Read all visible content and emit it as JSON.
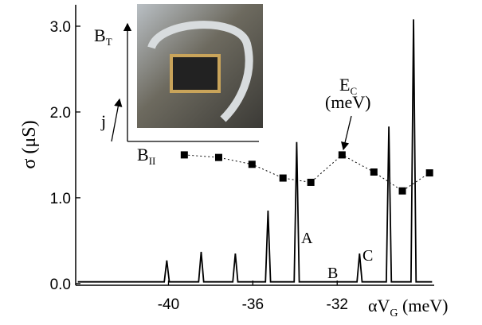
{
  "chart_data": {
    "type": "line",
    "ylabel": "σ (μS)",
    "xlabel": [
      "αV",
      "G",
      " (meV)"
    ],
    "xlim": [
      -44.4,
      -27.4
    ],
    "xticks": [
      -40,
      -36,
      -32
    ],
    "ylim": [
      -0.02,
      3.25
    ],
    "yticks": [
      {
        "value": 0,
        "label": "0.0"
      },
      {
        "value": 1,
        "label": "1.0"
      },
      {
        "value": 2,
        "label": "2.0"
      },
      {
        "value": 3,
        "label": "3.0"
      }
    ],
    "series": [
      {
        "color": "#000000",
        "linestyle": "solid",
        "x": [
          -44.3,
          -40.2,
          -40.08,
          -39.96,
          -38.57,
          -38.45,
          -38.33,
          -36.95,
          -36.83,
          -36.71,
          -35.4,
          -35.28,
          -35.16,
          -34.04,
          -33.92,
          -33.8,
          -31.06,
          -30.94,
          -30.82,
          -29.67,
          -29.55,
          -29.43,
          -28.5,
          -28.38,
          -28.26,
          -27.5
        ],
        "values": [
          0.02,
          0.02,
          0.27,
          0.02,
          0.02,
          0.37,
          0.02,
          0.02,
          0.35,
          0.02,
          0.02,
          0.85,
          0.02,
          0.02,
          1.65,
          0.02,
          0.02,
          0.35,
          0.02,
          0.02,
          1.83,
          0.02,
          0.02,
          3.08,
          0.02,
          0.02
        ]
      },
      {
        "color": "#000000",
        "linestyle": "dotted",
        "marker": "square",
        "x": [
          -39.25,
          -37.62,
          -36.04,
          -34.57,
          -33.25,
          -31.77,
          -30.26,
          -28.91,
          -27.62
        ],
        "values": [
          1.5,
          1.47,
          1.39,
          1.23,
          1.18,
          1.5,
          1.3,
          1.08,
          1.29
        ]
      }
    ],
    "annotations": {
      "peak_a": "A",
      "peak_b": "B",
      "peak_c": "C",
      "ec_label": [
        "E",
        "C"
      ],
      "ec_unit": "(meV)",
      "inset_bt": [
        "B",
        "T"
      ],
      "inset_j": "j",
      "inset_bii": [
        "B",
        "II"
      ]
    }
  }
}
